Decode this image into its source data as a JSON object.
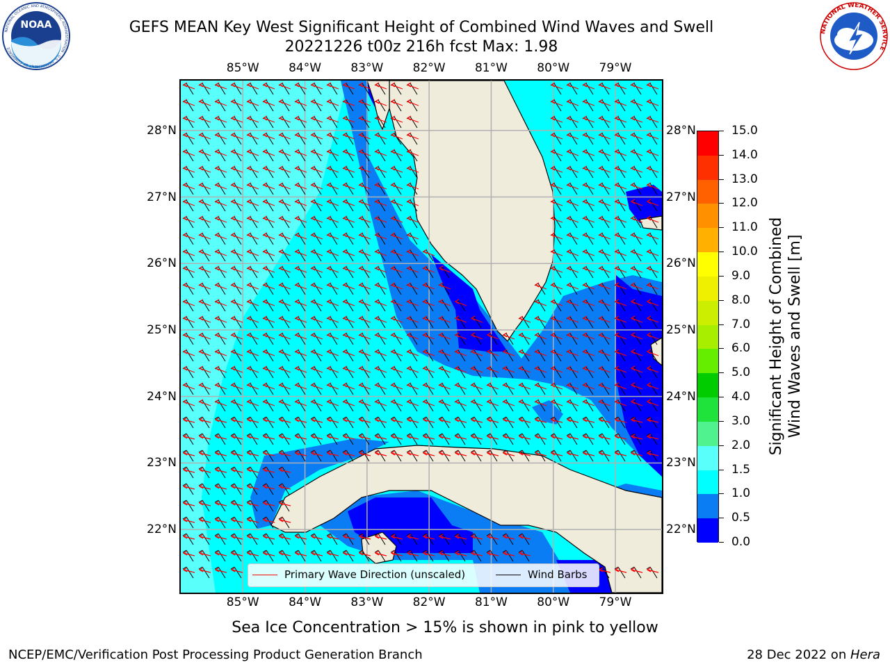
{
  "title": {
    "line1": "GEFS MEAN Key West Significant Height of Combined Wind Waves and Swell",
    "line2": "20221226 t00z 216h fcst   Max: 1.98"
  },
  "logos": {
    "noaa": {
      "label": "NOAA",
      "ring_text": "NATIONAL OCEANIC AND ATMOSPHERIC ADMINISTRATION · U.S. DEPARTMENT OF COMMERCE"
    },
    "nws": {
      "ring_text": "NATIONAL WEATHER SERVICE"
    }
  },
  "map": {
    "lon_ticks": [
      "85°W",
      "84°W",
      "83°W",
      "82°W",
      "81°W",
      "80°W",
      "79°W"
    ],
    "lat_ticks": [
      "28°N",
      "27°N",
      "26°N",
      "25°N",
      "24°N",
      "23°N",
      "22°N"
    ],
    "lon_range": [
      -86.0,
      -78.25
    ],
    "lat_range": [
      21.05,
      28.75
    ],
    "gridlines": true,
    "land_color": "#efecdc",
    "ocean_default_color": "#00ffff"
  },
  "legend": {
    "items": [
      {
        "label": "Primary Wave Direction (unscaled)",
        "color": "#ff0000"
      },
      {
        "label": "Wind Barbs",
        "color": "#000000"
      }
    ],
    "placement": "lower-center"
  },
  "colorbar": {
    "title_line1": "Significant Height of Combined",
    "title_line2": "Wind Waves and Swell [m]",
    "ticks": [
      "0.0",
      "0.5",
      "1.0",
      "1.5",
      "2.0",
      "3.0",
      "4.0",
      "5.0",
      "6.0",
      "7.0",
      "8.0",
      "9.0",
      "10.0",
      "11.0",
      "12.0",
      "13.0",
      "14.0",
      "15.0"
    ],
    "colors": [
      "#0000ff",
      "#0a7df5",
      "#00ffff",
      "#59fffa",
      "#a6fff8",
      "#4ff28f",
      "#1fe23a",
      "#00cc00",
      "#66ee00",
      "#a8ee00",
      "#ccee00",
      "#eef000",
      "#ffff00",
      "#ffd000",
      "#ffb000",
      "#ff9000",
      "#ff6000",
      "#ff3000",
      "#ff0000"
    ]
  },
  "note": "Sea Ice Concentration > 15% is shown in pink to yellow",
  "footer": {
    "left": "NCEP/EMC/Verification Post Processing Product Generation Branch",
    "right_prefix": "28 Dec 2022 on ",
    "right_host": "Hera"
  }
}
